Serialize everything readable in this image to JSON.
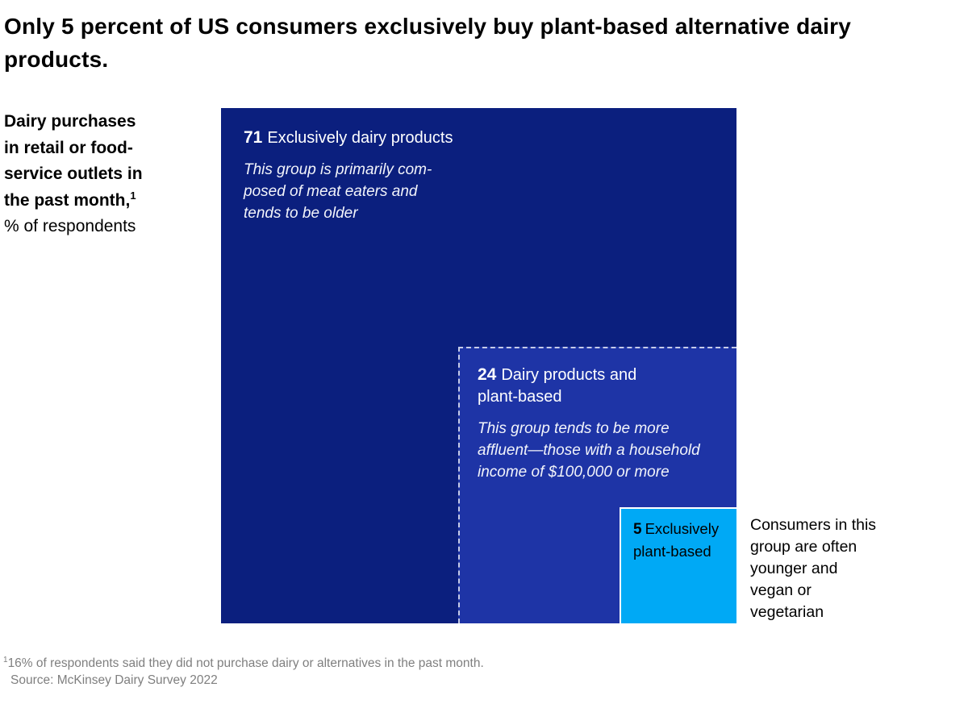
{
  "title": "Only 5 percent of US consumers exclusively buy plant-based alternative dairy\nproducts.",
  "axis_label": {
    "bold": "Dairy purchases\nin retail or food-\nservice outlets in\nthe past month,",
    "footnote_marker": "1",
    "regular": "% of respondents"
  },
  "squares": {
    "dairy": {
      "value": "71",
      "label": "Exclusively dairy products",
      "description": "This group is primarily com-\nposed of meat eaters and\ntends to be older",
      "color": "#0b1f7e"
    },
    "mixed": {
      "value": "24",
      "label": "Dairy products and\nplant-based",
      "description": "This group tends to be more\naffluent—those with a household\nincome of $100,000 or more",
      "color": "#1e34a6"
    },
    "plant": {
      "value": "5",
      "label": "Exclusively\nplant-based",
      "color": "#00a9f5"
    }
  },
  "annotation": "Consumers in this\ngroup are often\nyounger and\nvegan or\nvegetarian",
  "footnote": {
    "marker": "1",
    "text": "16% of respondents said they did not purchase dairy or alternatives in the past month."
  },
  "source": "Source: McKinsey Dairy Survey 2022",
  "chart_data": {
    "type": "treemap",
    "variant": "nested-proportional-squares",
    "title": "Only 5 percent of US consumers exclusively buy plant-based alternative dairy products.",
    "measure": "Dairy purchases in retail or food-service outlets in the past month, % of respondents",
    "categories": [
      "Exclusively dairy products",
      "Dairy products and plant-based",
      "Exclusively plant-based"
    ],
    "values": [
      71,
      24,
      5
    ],
    "colors": [
      "#0b1f7e",
      "#1e34a6",
      "#00a9f5"
    ],
    "segment_annotations": [
      "This group is primarily composed of meat eaters and tends to be older",
      "This group tends to be more affluent—those with a household income of $100,000 or more",
      "Consumers in this group are often younger and vegan or vegetarian"
    ],
    "footnote": "16% of respondents said they did not purchase dairy or alternatives in the past month.",
    "source": "McKinsey Dairy Survey 2022",
    "legend": "off",
    "grid": "off"
  }
}
